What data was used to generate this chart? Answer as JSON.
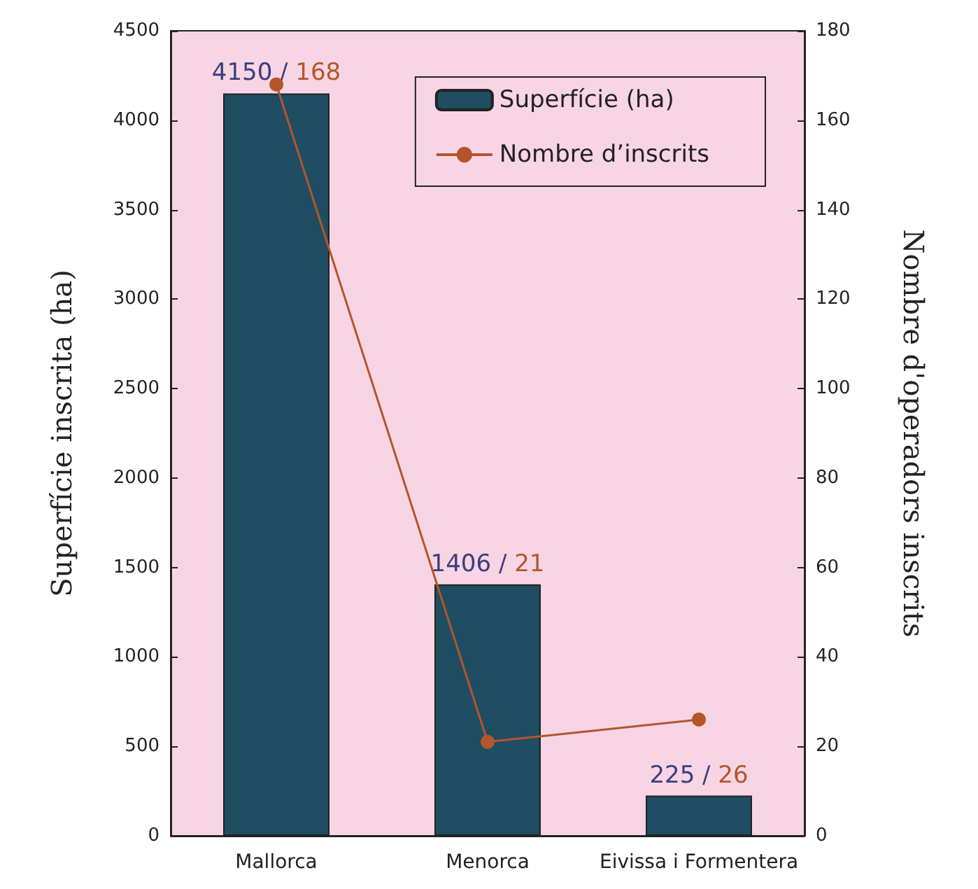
{
  "chart_data": {
    "type": "bar",
    "categories": [
      "Mallorca",
      "Menorca",
      "Eivissa i Formentera"
    ],
    "series": [
      {
        "name": "Superfície (ha)",
        "color": "#1f4d62",
        "values": [
          4150,
          1406,
          225
        ],
        "value_labels": [
          "4150 / 168",
          "1406 / 21",
          "225 / 26"
        ]
      },
      {
        "name": "Nombre d’inscrits",
        "type": "line",
        "axis": "y2",
        "color": "#b4552b",
        "marker": "circle",
        "values": [
          168,
          21,
          26
        ]
      }
    ],
    "ylabel": "Superfície inscrita (ha)",
    "y2label": "Nombre d'operadors inscrits",
    "ylim": [
      0,
      4500
    ],
    "yticks": [
      0,
      500,
      1000,
      1500,
      2000,
      2500,
      3000,
      3500,
      4000,
      4500
    ],
    "y2lim": [
      0,
      180
    ],
    "y2ticks": [
      0,
      20,
      40,
      60,
      80,
      100,
      120,
      140,
      160,
      180
    ],
    "grid": false,
    "legend": "top right"
  }
}
